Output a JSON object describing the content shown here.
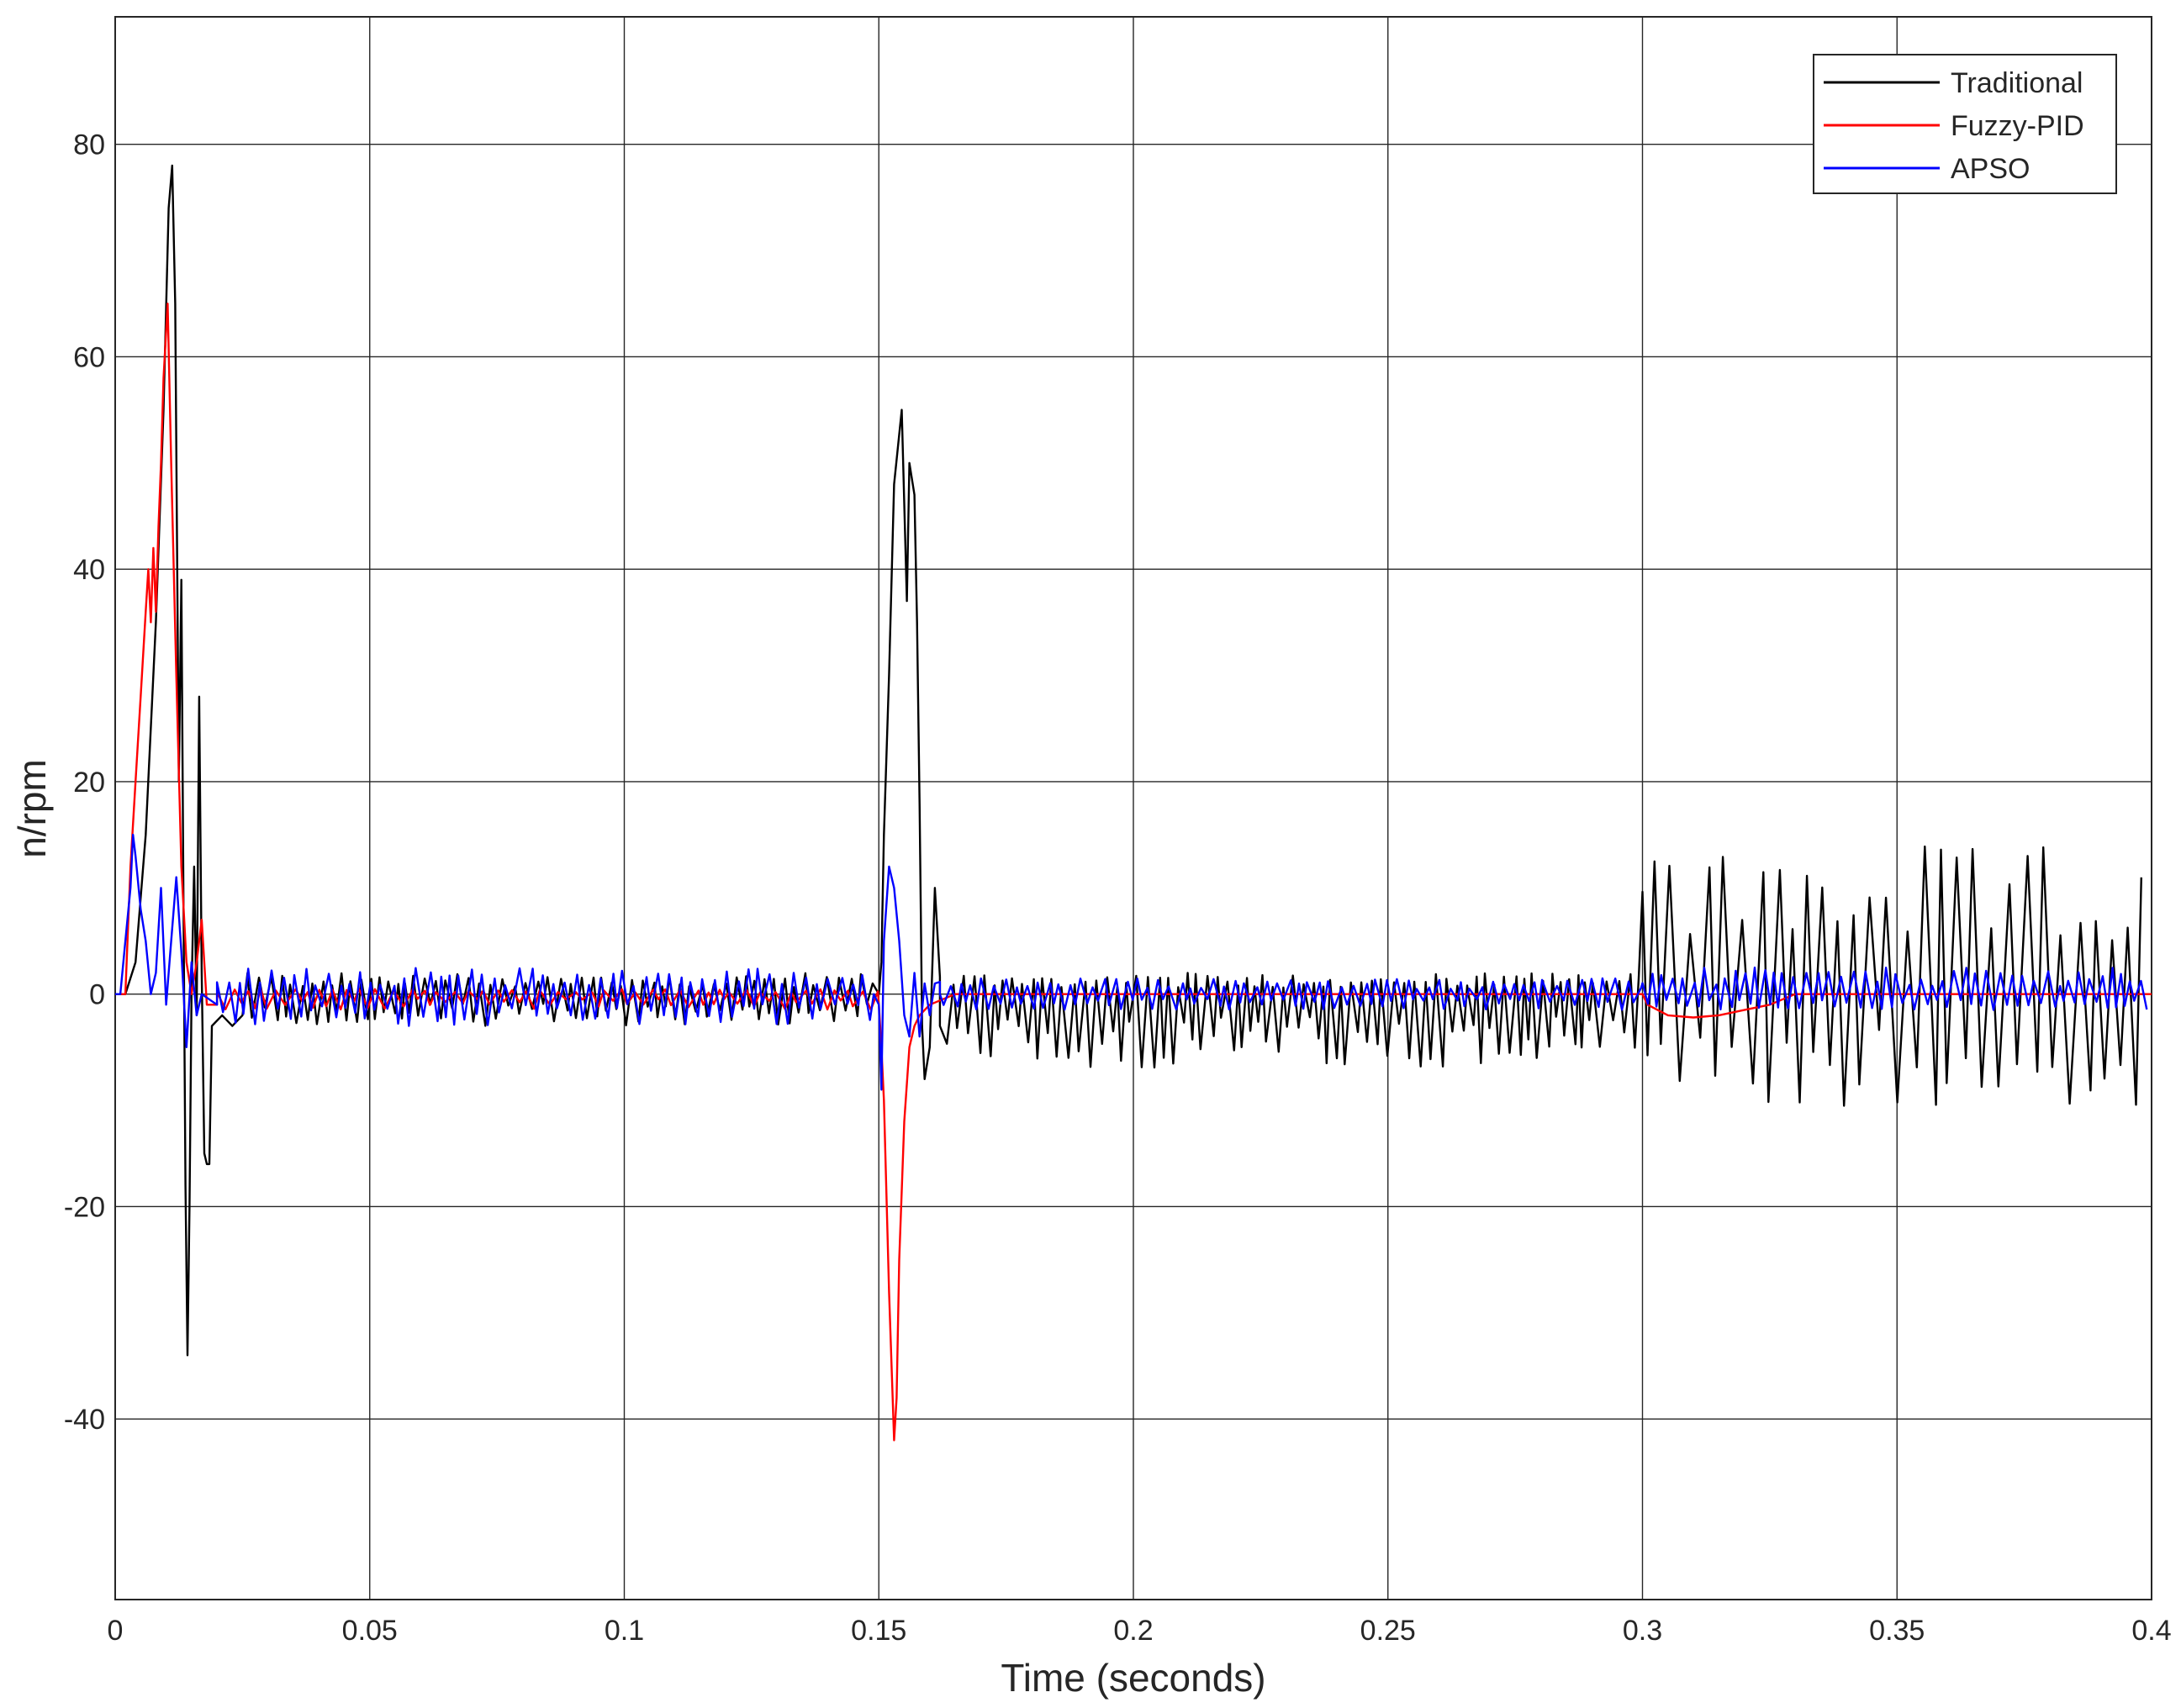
{
  "chart_data": {
    "type": "line",
    "xlabel": "Time (seconds)",
    "ylabel": "n/rpm",
    "xlim": [
      0,
      0.4
    ],
    "ylim": [
      -57,
      92
    ],
    "x_ticks": [
      0,
      0.05,
      0.1,
      0.15,
      0.2,
      0.25,
      0.3,
      0.35,
      0.4
    ],
    "x_tick_labels": [
      "0",
      "0.05",
      "0.1",
      "0.15",
      "0.2",
      "0.25",
      "0.3",
      "0.35",
      "0.4"
    ],
    "y_ticks": [
      -40,
      -20,
      0,
      20,
      40,
      60,
      80
    ],
    "y_tick_labels": [
      "-40",
      "-20",
      "0",
      "20",
      "40",
      "60",
      "80"
    ],
    "grid": true,
    "legend_position": "top-right",
    "series": [
      {
        "name": "Traditional",
        "color": "#000000",
        "points": [
          [
            0,
            0
          ],
          [
            0.002,
            0
          ],
          [
            0.004,
            3
          ],
          [
            0.006,
            15
          ],
          [
            0.008,
            35
          ],
          [
            0.0095,
            55
          ],
          [
            0.0105,
            74
          ],
          [
            0.0112,
            78
          ],
          [
            0.0118,
            65
          ],
          [
            0.0125,
            20
          ],
          [
            0.013,
            39
          ],
          [
            0.0134,
            10
          ],
          [
            0.0138,
            -18
          ],
          [
            0.0142,
            -34
          ],
          [
            0.0146,
            -20
          ],
          [
            0.015,
            0
          ],
          [
            0.0155,
            12
          ],
          [
            0.016,
            -2
          ],
          [
            0.0165,
            28
          ],
          [
            0.017,
            2
          ],
          [
            0.0175,
            -15
          ],
          [
            0.018,
            -16
          ],
          [
            0.0185,
            -16
          ],
          [
            0.019,
            -3
          ],
          [
            0.021,
            -2
          ],
          [
            0.023,
            -3
          ],
          [
            0.025,
            -2
          ],
          [
            0.026,
            2
          ]
        ],
        "noise": [
          {
            "from": 0.026,
            "to": 0.15,
            "pos": 2,
            "neg": -3,
            "step": 0.001
          },
          {
            "from": 0.162,
            "to": 0.3,
            "pos": 2,
            "neg": -7,
            "step": 0.001
          },
          {
            "from": 0.3,
            "to": 0.4,
            "pos": 14,
            "neg": -11,
            "step": 0.0016
          }
        ],
        "points_tail": [
          [
            0.15,
            0
          ],
          [
            0.1505,
            3
          ],
          [
            0.151,
            15
          ],
          [
            0.152,
            30
          ],
          [
            0.153,
            48
          ],
          [
            0.1545,
            55
          ],
          [
            0.1555,
            37
          ],
          [
            0.156,
            50
          ],
          [
            0.157,
            47
          ],
          [
            0.1575,
            35
          ],
          [
            0.158,
            18
          ],
          [
            0.1585,
            -3
          ],
          [
            0.159,
            -8
          ],
          [
            0.16,
            -5
          ],
          [
            0.161,
            10
          ],
          [
            0.162,
            -3
          ]
        ]
      },
      {
        "name": "Fuzzy-PID",
        "color": "#ff0000",
        "points": [
          [
            0,
            0
          ],
          [
            0.002,
            0
          ],
          [
            0.003,
            12
          ],
          [
            0.004,
            20
          ],
          [
            0.005,
            28
          ],
          [
            0.006,
            36
          ],
          [
            0.0065,
            40
          ],
          [
            0.007,
            35
          ],
          [
            0.0075,
            42
          ],
          [
            0.008,
            36
          ],
          [
            0.0085,
            44
          ],
          [
            0.009,
            50
          ],
          [
            0.0095,
            58
          ],
          [
            0.0103,
            65
          ],
          [
            0.011,
            50
          ],
          [
            0.012,
            30
          ],
          [
            0.013,
            12
          ],
          [
            0.014,
            3
          ],
          [
            0.015,
            0
          ],
          [
            0.016,
            3
          ],
          [
            0.017,
            7
          ],
          [
            0.018,
            -1
          ],
          [
            0.02,
            -1
          ],
          [
            0.15,
            -1
          ],
          [
            0.1505,
            -5
          ],
          [
            0.151,
            -10
          ],
          [
            0.152,
            -28
          ],
          [
            0.153,
            -42
          ],
          [
            0.1535,
            -38
          ],
          [
            0.154,
            -25
          ],
          [
            0.155,
            -12
          ],
          [
            0.156,
            -5
          ],
          [
            0.157,
            -3
          ],
          [
            0.158,
            -2
          ],
          [
            0.16,
            -1
          ],
          [
            0.165,
            0
          ],
          [
            0.3,
            0
          ],
          [
            0.301,
            -1
          ],
          [
            0.305,
            -2
          ],
          [
            0.31,
            -2.2
          ],
          [
            0.315,
            -2
          ],
          [
            0.32,
            -1.5
          ],
          [
            0.325,
            -1
          ],
          [
            0.33,
            0
          ],
          [
            0.4,
            0
          ]
        ],
        "noise": [
          {
            "from": 0.02,
            "to": 0.15,
            "pos": 0.5,
            "neg": -1.5,
            "step": 0.0015
          }
        ]
      },
      {
        "name": "APSO",
        "color": "#0000ff",
        "points": [
          [
            0,
            0
          ],
          [
            0.001,
            0
          ],
          [
            0.002,
            5
          ],
          [
            0.003,
            10
          ],
          [
            0.0035,
            15
          ],
          [
            0.004,
            13
          ],
          [
            0.005,
            8
          ],
          [
            0.006,
            5
          ],
          [
            0.007,
            0
          ],
          [
            0.008,
            2
          ],
          [
            0.009,
            10
          ],
          [
            0.01,
            -1
          ],
          [
            0.011,
            5
          ],
          [
            0.012,
            11
          ],
          [
            0.013,
            4
          ],
          [
            0.014,
            -5
          ],
          [
            0.015,
            3
          ],
          [
            0.016,
            -2
          ],
          [
            0.017,
            0
          ],
          [
            0.02,
            -1
          ]
        ],
        "points_tail": [
          [
            0.149,
            0
          ],
          [
            0.15,
            -1
          ],
          [
            0.1505,
            -9
          ],
          [
            0.151,
            5
          ],
          [
            0.152,
            12
          ],
          [
            0.153,
            10
          ],
          [
            0.154,
            5
          ],
          [
            0.155,
            -2
          ],
          [
            0.156,
            -4
          ],
          [
            0.157,
            2
          ],
          [
            0.158,
            -4
          ],
          [
            0.159,
            1
          ],
          [
            0.16,
            -2
          ],
          [
            0.161,
            1
          ],
          [
            0.162,
            0
          ]
        ],
        "noise": [
          {
            "from": 0.02,
            "to": 0.149,
            "pos": 2.5,
            "neg": -3,
            "step": 0.0011
          },
          {
            "from": 0.162,
            "to": 0.3,
            "pos": 1.5,
            "neg": -1.5,
            "step": 0.0011
          },
          {
            "from": 0.3,
            "to": 0.4,
            "pos": 2.5,
            "neg": -1.5,
            "step": 0.0011
          }
        ]
      }
    ]
  }
}
